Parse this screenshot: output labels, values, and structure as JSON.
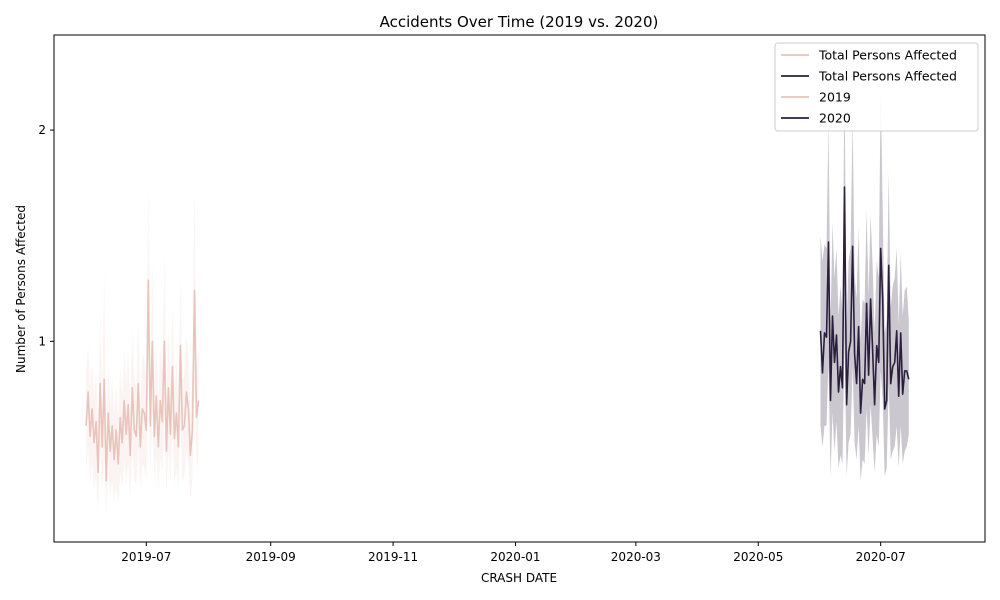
{
  "chart_data": {
    "type": "line",
    "title": "Accidents Over Time (2019 vs. 2020)",
    "xlabel": "CRASH DATE",
    "ylabel": "Number of Persons Affected",
    "xlim": [
      "2019-05-16",
      "2020-08-22"
    ],
    "ylim": [
      0.05,
      2.45
    ],
    "x_ticks": [
      "2019-07",
      "2019-09",
      "2019-11",
      "2020-01",
      "2020-03",
      "2020-05",
      "2020-07"
    ],
    "y_ticks": [
      1,
      2
    ],
    "legend": {
      "placement": "top-right",
      "entries": [
        {
          "label": "Total Persons Affected",
          "color": "#e8c4bd"
        },
        {
          "label": "Total Persons Affected",
          "color": "#2b1f3d"
        },
        {
          "label": "2019",
          "color": "#e8c4bd"
        },
        {
          "label": "2020",
          "color": "#2b1f3d"
        }
      ]
    },
    "series": [
      {
        "name": "2019",
        "color": "#e8c4bd",
        "band_color": "#e8c4bd",
        "start": "2019-06-01",
        "values": [
          0.6,
          0.76,
          0.55,
          0.68,
          0.52,
          0.62,
          0.38,
          0.8,
          0.5,
          0.82,
          0.34,
          0.66,
          0.48,
          0.6,
          0.44,
          0.58,
          0.42,
          0.64,
          0.52,
          0.72,
          0.56,
          0.7,
          0.46,
          0.78,
          0.58,
          0.55,
          0.8,
          0.5,
          0.68,
          0.66,
          0.58,
          1.29,
          0.6,
          1.0,
          0.55,
          0.74,
          0.5,
          0.72,
          0.62,
          1.0,
          0.48,
          0.78,
          0.56,
          0.88,
          0.54,
          0.66,
          0.5,
          0.98,
          0.58,
          0.6,
          0.76,
          0.68,
          0.46,
          0.58,
          1.24,
          0.64,
          0.72
        ],
        "lower": [
          0.38,
          0.5,
          0.34,
          0.42,
          0.3,
          0.36,
          0.2,
          0.5,
          0.28,
          0.52,
          0.16,
          0.4,
          0.26,
          0.34,
          0.24,
          0.32,
          0.22,
          0.38,
          0.3,
          0.44,
          0.32,
          0.42,
          0.26,
          0.48,
          0.34,
          0.32,
          0.5,
          0.28,
          0.42,
          0.4,
          0.34,
          0.9,
          0.36,
          0.66,
          0.32,
          0.46,
          0.3,
          0.44,
          0.38,
          0.66,
          0.28,
          0.48,
          0.34,
          0.56,
          0.32,
          0.4,
          0.3,
          0.62,
          0.34,
          0.36,
          0.48,
          0.42,
          0.26,
          0.34,
          0.82,
          0.4,
          0.44
        ],
        "upper": [
          0.86,
          0.98,
          0.78,
          0.9,
          0.74,
          0.86,
          0.58,
          1.12,
          0.72,
          1.34,
          0.52,
          0.9,
          0.7,
          0.84,
          0.64,
          0.8,
          0.62,
          0.88,
          0.74,
          0.98,
          0.8,
          0.96,
          0.68,
          1.06,
          0.82,
          0.78,
          1.1,
          0.72,
          0.94,
          0.92,
          0.82,
          1.74,
          0.86,
          1.38,
          0.78,
          1.0,
          0.72,
          0.98,
          0.86,
          1.44,
          0.7,
          1.06,
          0.8,
          1.2,
          0.76,
          0.92,
          0.72,
          1.32,
          0.82,
          0.84,
          1.02,
          0.94,
          0.66,
          0.82,
          1.76,
          0.88,
          0.98
        ]
      },
      {
        "name": "2020",
        "color": "#2b1f3d",
        "band_color": "#2b1f3d",
        "start": "2020-06-01",
        "values": [
          1.05,
          0.85,
          1.04,
          1.02,
          1.47,
          0.72,
          1.12,
          0.9,
          1.03,
          0.76,
          0.88,
          0.78,
          1.73,
          0.7,
          0.95,
          1.0,
          1.45,
          0.94,
          0.8,
          1.07,
          0.66,
          0.82,
          0.8,
          1.18,
          0.84,
          1.2,
          0.96,
          0.7,
          0.98,
          0.9,
          1.44,
          1.2,
          0.68,
          0.72,
          1.36,
          0.8,
          0.88,
          0.9,
          1.05,
          0.74,
          1.04,
          0.75,
          0.86,
          0.86,
          0.82
        ],
        "lower": [
          0.6,
          0.5,
          0.6,
          0.6,
          0.9,
          0.36,
          0.66,
          0.48,
          0.62,
          0.4,
          0.46,
          0.42,
          1.02,
          0.36,
          0.52,
          0.56,
          0.88,
          0.52,
          0.44,
          0.6,
          0.34,
          0.44,
          0.42,
          0.68,
          0.46,
          0.7,
          0.54,
          0.38,
          0.56,
          0.5,
          0.86,
          0.72,
          0.36,
          0.4,
          0.8,
          0.44,
          0.48,
          0.5,
          0.6,
          0.4,
          0.6,
          0.42,
          0.48,
          0.5,
          0.56
        ],
        "upper": [
          1.5,
          1.38,
          1.46,
          1.44,
          2.04,
          1.08,
          1.56,
          1.3,
          1.44,
          1.12,
          1.26,
          1.14,
          2.22,
          1.06,
          1.38,
          1.44,
          2.06,
          1.32,
          1.2,
          1.54,
          1.0,
          1.2,
          1.18,
          1.62,
          1.22,
          1.6,
          1.36,
          1.04,
          1.38,
          1.3,
          2.2,
          1.62,
          1.04,
          1.1,
          1.8,
          1.16,
          1.26,
          1.3,
          1.44,
          1.08,
          1.42,
          1.12,
          1.24,
          1.26,
          1.1
        ]
      }
    ]
  }
}
